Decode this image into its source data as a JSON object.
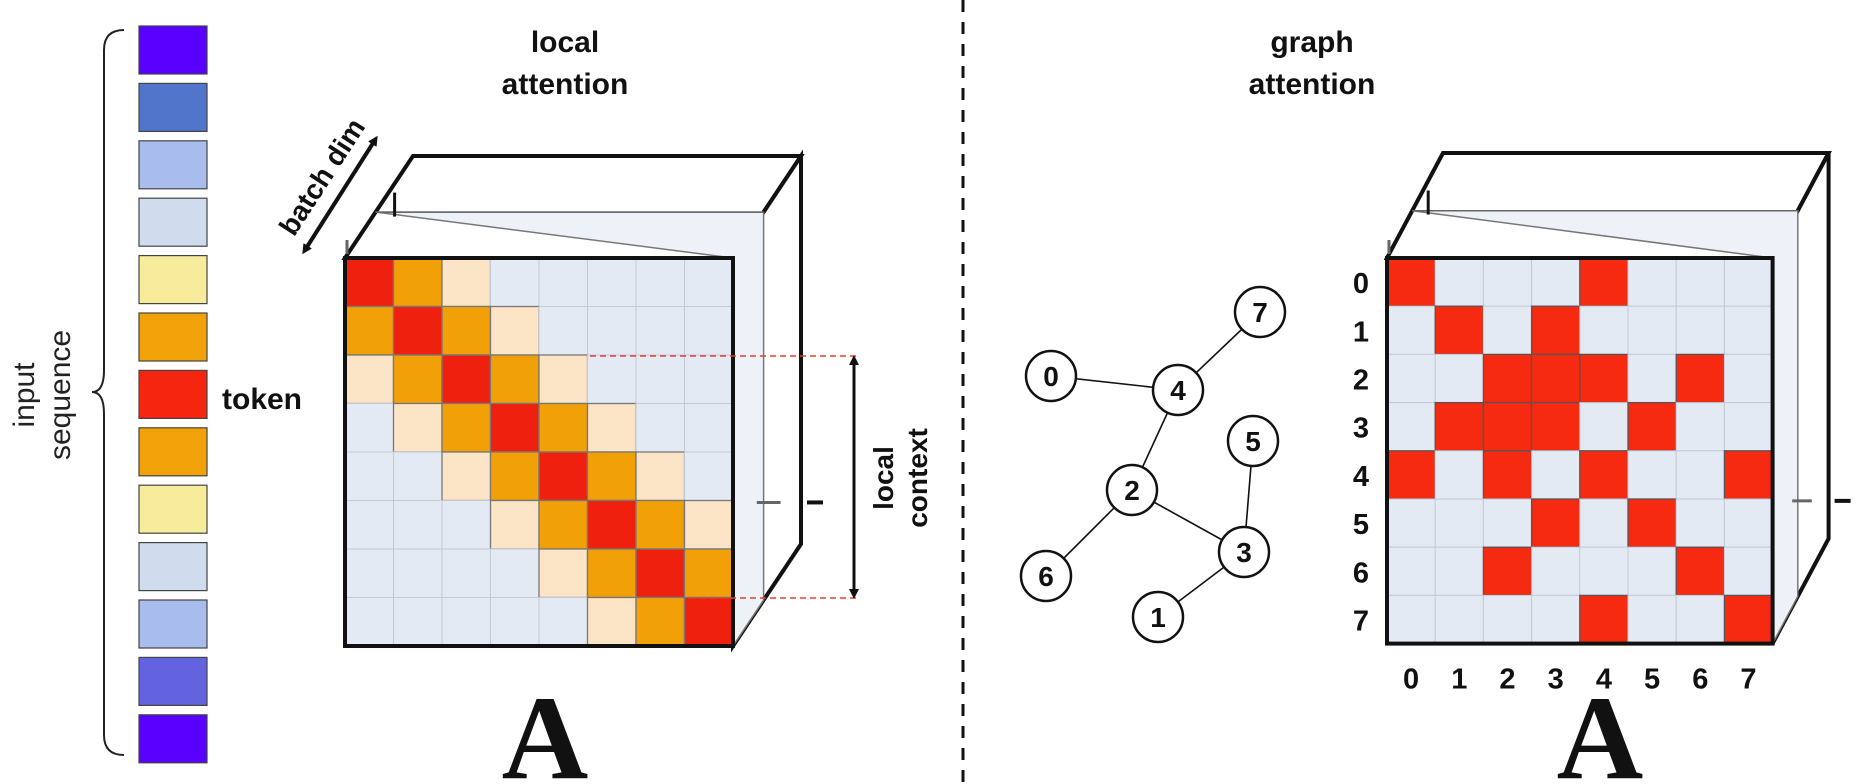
{
  "colors": {
    "attend_self": "#f0200f",
    "attend_near": "#f2a007",
    "attend_far": "#fbe5c6",
    "attend_none": "#e4eaf4",
    "graph_edge": "#f52a10",
    "face_light": "#edf2f8",
    "dashed_guide": "#e04030"
  },
  "input_sequence": {
    "label_line1": "input",
    "label_line2": "sequence",
    "token_colors": [
      "#5a00ff",
      "#5275cc",
      "#a8bdec",
      "#cfdcee",
      "#f6ec9c",
      "#f2a209",
      "#f52510",
      "#f2a209",
      "#f6ec9c",
      "#cfdcee",
      "#a8bdec",
      "#6363e0",
      "#5a00ff"
    ]
  },
  "local": {
    "title_line1": "local",
    "title_line2": "attention",
    "batch_label": "batch dim",
    "token_label": "token",
    "context_line1": "local",
    "context_line2": "context",
    "matrix_symbol": "A",
    "matrix": [
      [
        2,
        1,
        0,
        -1,
        -1,
        -1,
        -1,
        -1
      ],
      [
        1,
        2,
        1,
        0,
        -1,
        -1,
        -1,
        -1
      ],
      [
        0,
        1,
        2,
        1,
        0,
        -1,
        -1,
        -1
      ],
      [
        -1,
        0,
        1,
        2,
        1,
        0,
        -1,
        -1
      ],
      [
        -1,
        -1,
        0,
        1,
        2,
        1,
        0,
        -1
      ],
      [
        -1,
        -1,
        -1,
        0,
        1,
        2,
        1,
        0
      ],
      [
        -1,
        -1,
        -1,
        -1,
        0,
        1,
        2,
        1
      ],
      [
        -1,
        -1,
        -1,
        -1,
        -1,
        0,
        1,
        2
      ]
    ]
  },
  "graph": {
    "title_line1": "graph",
    "title_line2": "attention",
    "matrix_symbol": "A",
    "row_labels": [
      "0",
      "1",
      "2",
      "3",
      "4",
      "5",
      "6",
      "7"
    ],
    "col_labels": [
      "0",
      "1",
      "2",
      "3",
      "4",
      "5",
      "6",
      "7"
    ],
    "nodes": [
      {
        "id": "0",
        "label": "0"
      },
      {
        "id": "1",
        "label": "1"
      },
      {
        "id": "2",
        "label": "2"
      },
      {
        "id": "3",
        "label": "3"
      },
      {
        "id": "4",
        "label": "4"
      },
      {
        "id": "5",
        "label": "5"
      },
      {
        "id": "6",
        "label": "6"
      },
      {
        "id": "7",
        "label": "7"
      }
    ],
    "edges": [
      [
        "0",
        "4"
      ],
      [
        "4",
        "7"
      ],
      [
        "4",
        "2"
      ],
      [
        "2",
        "6"
      ],
      [
        "2",
        "3"
      ],
      [
        "3",
        "5"
      ],
      [
        "3",
        "1"
      ]
    ],
    "adjacency": [
      [
        1,
        0,
        0,
        0,
        1,
        0,
        0,
        0
      ],
      [
        0,
        1,
        0,
        1,
        0,
        0,
        0,
        0
      ],
      [
        0,
        0,
        1,
        1,
        1,
        0,
        1,
        0
      ],
      [
        0,
        1,
        1,
        1,
        0,
        1,
        0,
        0
      ],
      [
        1,
        0,
        1,
        0,
        1,
        0,
        0,
        1
      ],
      [
        0,
        0,
        0,
        1,
        0,
        1,
        0,
        0
      ],
      [
        0,
        0,
        1,
        0,
        0,
        0,
        1,
        0
      ],
      [
        0,
        0,
        0,
        0,
        1,
        0,
        0,
        1
      ]
    ]
  }
}
